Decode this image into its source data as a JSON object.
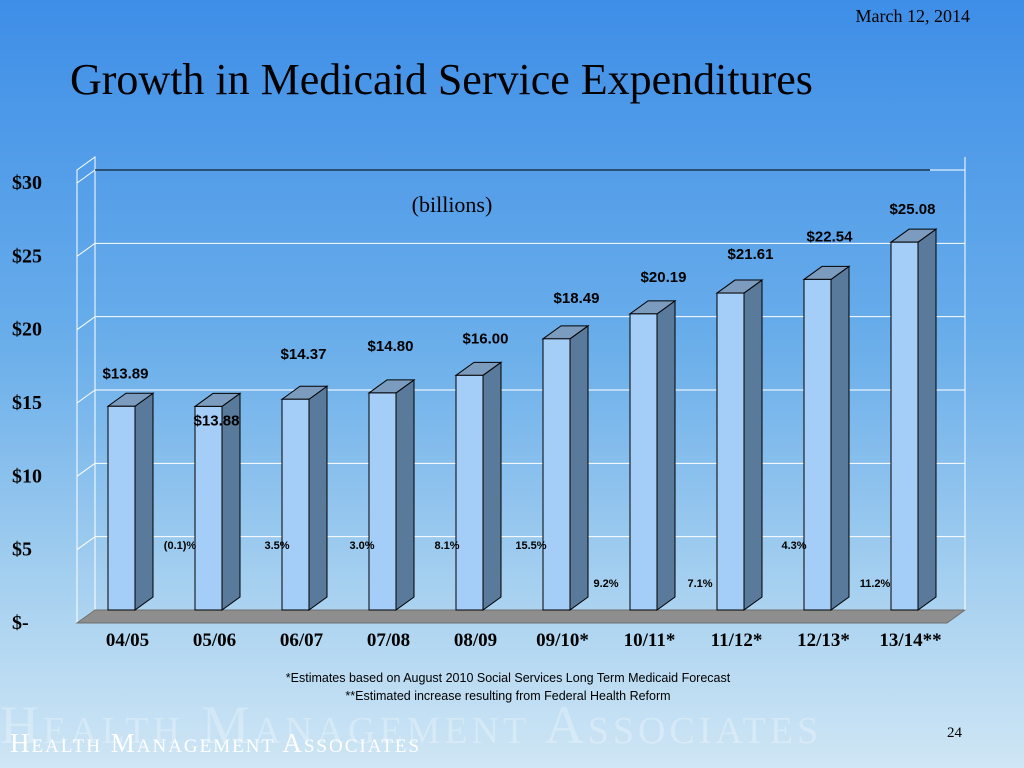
{
  "slide": {
    "date": "March 12, 2014",
    "title": "Growth in Medicaid Service Expenditures",
    "footnote_1": "*Estimates based on August 2010 Social Services Long Term Medicaid Forecast",
    "footnote_2": "**Estimated increase resulting from Federal Health Reform",
    "logo_text": "Health Management Associates",
    "page_number": "24"
  },
  "chart_data": {
    "type": "bar",
    "title": "",
    "annotation": "(billions)",
    "categories": [
      "04/05",
      "05/06",
      "06/07",
      "07/08",
      "08/09",
      "09/10*",
      "10/11*",
      "11/12*",
      "12/13*",
      "13/14**"
    ],
    "values": [
      13.89,
      13.88,
      14.37,
      14.8,
      16.0,
      18.49,
      20.19,
      21.61,
      22.54,
      25.08
    ],
    "value_labels": [
      "$13.89",
      "$13.88",
      "$14.37",
      "$14.80",
      "$16.00",
      "$18.49",
      "$20.19",
      "$21.61",
      "$22.54",
      "$25.08"
    ],
    "growth_labels": [
      "(0.1)%",
      "3.5%",
      "3.0%",
      "8.1%",
      "15.5%",
      "9.2%",
      "7.1%",
      "4.3%",
      "11.2%"
    ],
    "y_ticks": [
      0,
      5,
      10,
      15,
      20,
      25,
      30
    ],
    "y_tick_labels": [
      "$-",
      "$5",
      "$10",
      "$15",
      "$20",
      "$25",
      "$30"
    ],
    "ylim": [
      0,
      30
    ],
    "grid": true,
    "colors": {
      "bar_front": "#a4cdf8",
      "bar_side": "#5a7a9c",
      "bar_top": "#7c9cbf",
      "floor": "#8e8e8e"
    }
  }
}
